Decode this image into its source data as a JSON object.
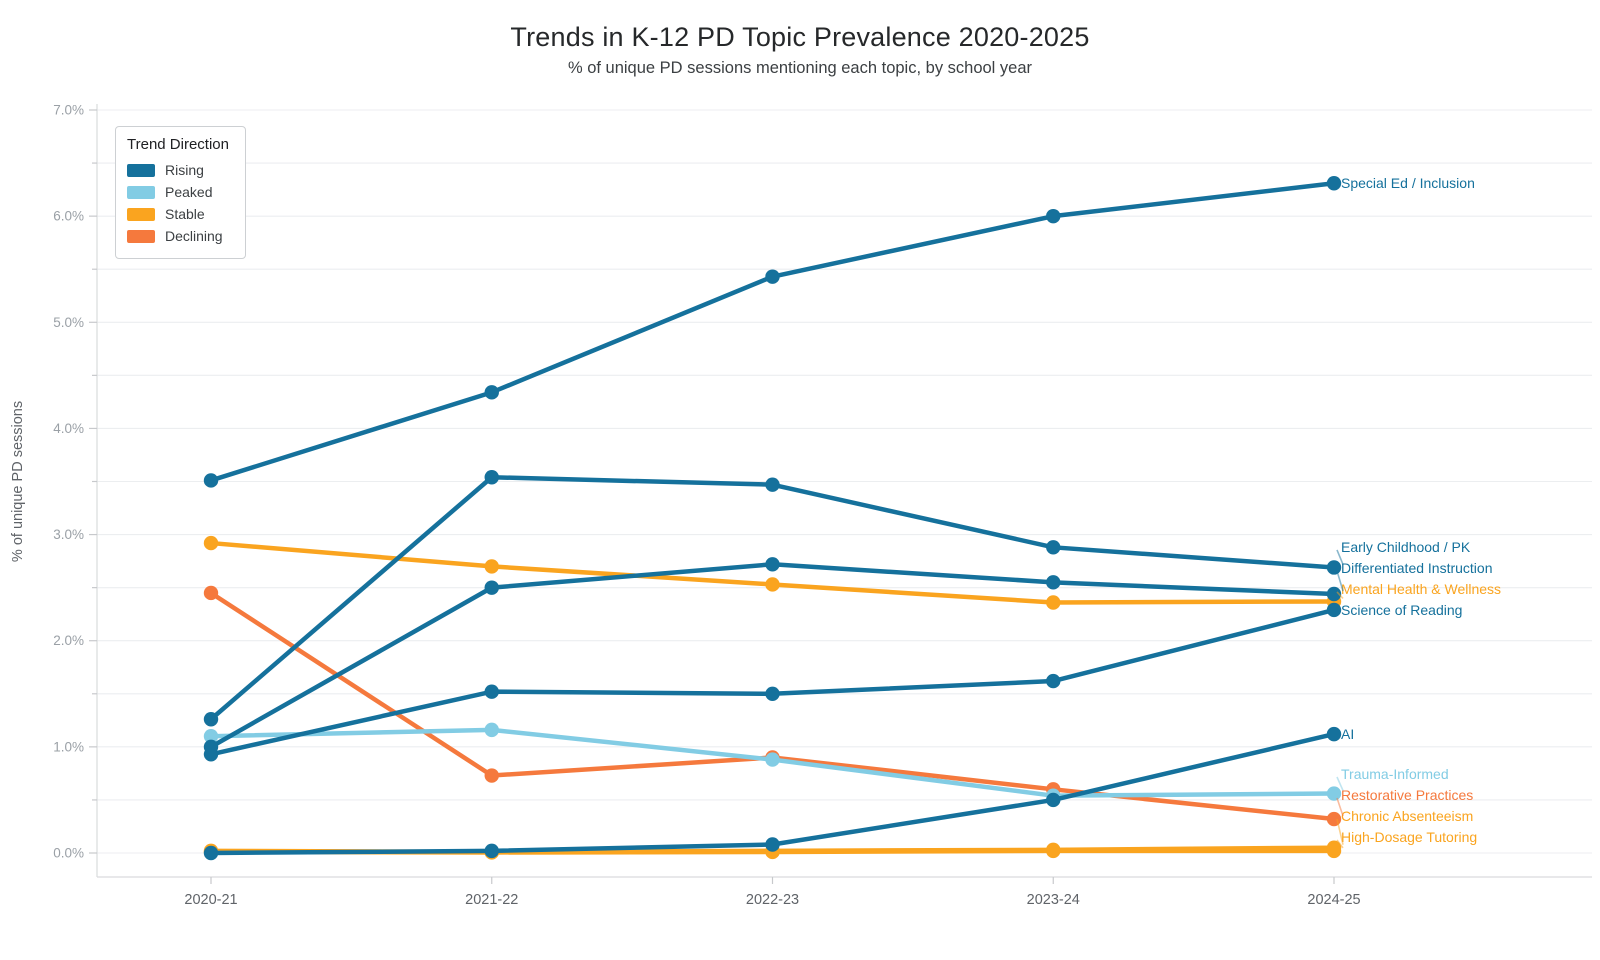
{
  "chart_data": {
    "type": "line",
    "title": "Trends in K-12 PD Topic Prevalence 2020-2025",
    "subtitle": "% of unique PD sessions mentioning each topic, by school year",
    "ylabel": "% of unique PD sessions",
    "x_categories": [
      "2020-21",
      "2021-22",
      "2022-23",
      "2023-24",
      "2024-25"
    ],
    "ylim": [
      0,
      7.0
    ],
    "y_major_tick_step": 1.0,
    "y_minor_tick_step": 0.5,
    "y_tick_suffix": "%",
    "grid": true,
    "legend": {
      "title": "Trend Direction",
      "position": "top-left",
      "items": [
        {
          "label": "Rising",
          "color": "#15719c"
        },
        {
          "label": "Peaked",
          "color": "#82cce4"
        },
        {
          "label": "Stable",
          "color": "#faa41f"
        },
        {
          "label": "Declining",
          "color": "#f5793d"
        }
      ]
    },
    "series": [
      {
        "name": "Special Ed / Inclusion",
        "trend": "Rising",
        "color": "#15719c",
        "values": [
          3.51,
          4.34,
          5.43,
          6.0,
          6.31
        ]
      },
      {
        "name": "Early Childhood / PK",
        "trend": "Rising",
        "color": "#15719c",
        "values": [
          1.26,
          3.54,
          3.47,
          2.88,
          2.69
        ]
      },
      {
        "name": "Differentiated Instruction",
        "trend": "Rising",
        "color": "#15719c",
        "values": [
          1.0,
          2.5,
          2.72,
          2.55,
          2.44
        ]
      },
      {
        "name": "Mental Health & Wellness",
        "trend": "Stable",
        "color": "#faa41f",
        "values": [
          2.92,
          2.7,
          2.53,
          2.36,
          2.37
        ]
      },
      {
        "name": "Science of Reading",
        "trend": "Rising",
        "color": "#15719c",
        "values": [
          0.93,
          1.52,
          1.5,
          1.62,
          2.29
        ]
      },
      {
        "name": "AI",
        "trend": "Rising",
        "color": "#15719c",
        "values": [
          0.0,
          0.02,
          0.08,
          0.5,
          1.12
        ]
      },
      {
        "name": "Trauma-Informed",
        "trend": "Peaked",
        "color": "#82cce4",
        "values": [
          1.1,
          1.16,
          0.88,
          0.54,
          0.56
        ]
      },
      {
        "name": "Restorative Practices",
        "trend": "Declining",
        "color": "#f5793d",
        "values": [
          2.45,
          0.73,
          0.9,
          0.6,
          0.32
        ]
      },
      {
        "name": "Chronic Absenteeism",
        "trend": "Stable",
        "color": "#faa41f",
        "values": [
          0.02,
          0.01,
          0.02,
          0.03,
          0.05
        ]
      },
      {
        "name": "High-Dosage Tutoring",
        "trend": "Stable",
        "color": "#faa41f",
        "values": [
          0.01,
          0.005,
          0.01,
          0.02,
          0.02
        ]
      }
    ]
  }
}
